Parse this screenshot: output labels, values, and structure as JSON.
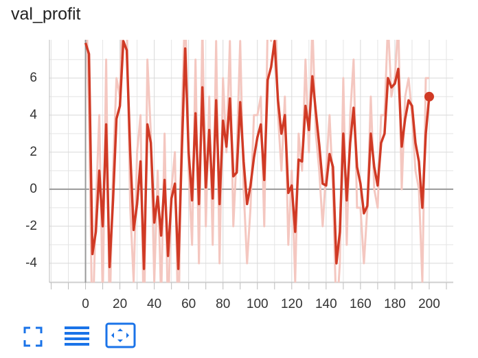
{
  "chart_data": {
    "type": "line",
    "title": "val_profit",
    "x": [
      0,
      2,
      4,
      6,
      8,
      10,
      12,
      14,
      16,
      18,
      20,
      22,
      24,
      26,
      28,
      30,
      32,
      34,
      36,
      38,
      40,
      42,
      44,
      46,
      48,
      50,
      52,
      54,
      56,
      58,
      60,
      62,
      64,
      66,
      68,
      70,
      72,
      74,
      76,
      78,
      80,
      82,
      84,
      86,
      88,
      90,
      92,
      94,
      96,
      98,
      100,
      102,
      104,
      106,
      108,
      110,
      112,
      114,
      116,
      118,
      120,
      122,
      124,
      126,
      128,
      130,
      132,
      134,
      136,
      138,
      140,
      142,
      144,
      146,
      148,
      150,
      152,
      154,
      156,
      158,
      160,
      162,
      164,
      166,
      168,
      170,
      172,
      174,
      176,
      178,
      180,
      182,
      184,
      186,
      188,
      190,
      192,
      194,
      196,
      198,
      200
    ],
    "series": [
      {
        "name": "val_profit",
        "color": "#d03a25",
        "role": "smoothed",
        "values": [
          7.9,
          7.3,
          -3.5,
          -2.3,
          1.0,
          -2.0,
          3.5,
          -4.2,
          -0.6,
          3.8,
          4.5,
          8.0,
          7.5,
          2.0,
          -2.2,
          -0.8,
          1.5,
          -4.3,
          3.5,
          2.5,
          -1.8,
          -0.4,
          -2.5,
          0.5,
          -3.6,
          -0.5,
          0.3,
          -4.3,
          2.0,
          7.6,
          2.0,
          -0.6,
          4.1,
          -0.8,
          5.5,
          0.1,
          3.2,
          -0.5,
          4.8,
          -0.8,
          3.7,
          2.3,
          4.9,
          0.7,
          0.9,
          4.7,
          1.5,
          -0.8,
          0.2,
          1.7,
          2.8,
          3.5,
          0.5,
          5.9,
          6.6,
          8.0,
          4.8,
          3.0,
          4.0,
          -0.2,
          0.2,
          -2.3,
          1.6,
          1.5,
          4.5,
          3.2,
          6.1,
          4.2,
          2.4,
          0.3,
          0.2,
          1.9,
          1.2,
          -4.0,
          -2.3,
          3.0,
          -0.6,
          2.5,
          4.4,
          1.2,
          0.3,
          -1.3,
          -0.9,
          3.0,
          1.2,
          0.2,
          2.5,
          3.0,
          6.0,
          5.5,
          5.7,
          6.5,
          2.3,
          3.8,
          4.8,
          4.5,
          2.5,
          1.5,
          -1.0,
          3.0,
          5.0
        ]
      },
      {
        "name": "val_profit",
        "color": "#f4c7c0",
        "role": "raw",
        "values": [
          12,
          4,
          -8,
          -1,
          4,
          -6,
          7,
          -7,
          1,
          6,
          5,
          12,
          9,
          -1,
          -5,
          2,
          4,
          -8,
          7,
          3,
          -5,
          1,
          -6,
          3,
          -7,
          0,
          2,
          -8,
          4,
          10,
          1,
          -3,
          7,
          -4,
          9,
          -2,
          5,
          -3,
          8,
          -4,
          6,
          2,
          8,
          -2,
          2,
          8,
          0,
          -4,
          -1,
          4,
          4,
          5,
          -2,
          9,
          8,
          12,
          4,
          1,
          5,
          -3,
          1,
          -5,
          3,
          1,
          7,
          2,
          9,
          3,
          1,
          -2,
          1,
          4,
          0,
          -7,
          -4,
          6,
          -3,
          4,
          7,
          -1,
          -1,
          -4,
          -1,
          5,
          0,
          -1,
          4,
          4,
          9,
          5,
          6,
          9,
          0,
          5,
          6,
          4,
          1,
          0,
          -5,
          6,
          6
        ]
      }
    ],
    "xlim": [
      -21,
      214
    ],
    "ylim": [
      -5.04,
      8.07
    ],
    "xticks": [
      0,
      20,
      40,
      60,
      80,
      100,
      120,
      140,
      160,
      180,
      200
    ],
    "minor_xticks": [
      -20,
      -10,
      10,
      30,
      50,
      70,
      90,
      110,
      130,
      150,
      170,
      190,
      210
    ],
    "yticks": [
      -4,
      -2,
      0,
      2,
      4,
      6
    ],
    "minor_yticks": [
      -5,
      -3,
      -1,
      1,
      3,
      5,
      7
    ],
    "grid": true,
    "last_point_marker": true
  }
}
